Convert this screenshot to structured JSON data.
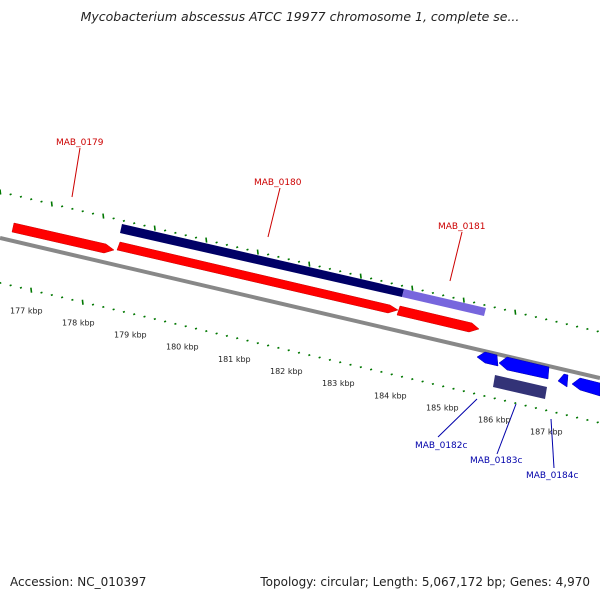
{
  "title": "Mycobacterium abscessus ATCC 19977 chromosome 1, complete se...",
  "footer": {
    "accession": "Accession: NC_010397",
    "summary": "Topology: circular; Length: 5,067,172 bp; Genes: 4,970"
  },
  "colors": {
    "forward_gene": "#ff0000",
    "reverse_gene": "#0000ff",
    "forward_cds": "#000066",
    "reverse_cds": "#333377",
    "highlight_cds": "#7766dd",
    "forward_label": "#cc0000",
    "reverse_label": "#0000aa",
    "ruler_ticks": "#007700",
    "backbone": "#888888"
  },
  "ruler_labels": [
    "177 kbp",
    "178 kbp",
    "179 kbp",
    "180 kbp",
    "181 kbp",
    "182 kbp",
    "183 kbp",
    "184 kbp",
    "185 kbp",
    "186 kbp",
    "187 kbp"
  ],
  "genes": {
    "mab0179": "MAB_0179",
    "mab0180": "MAB_0180",
    "mab0181": "MAB_0181",
    "mab0182c": "MAB_0182c",
    "mab0183c": "MAB_0183c",
    "mab0184c": "MAB_0184c"
  }
}
